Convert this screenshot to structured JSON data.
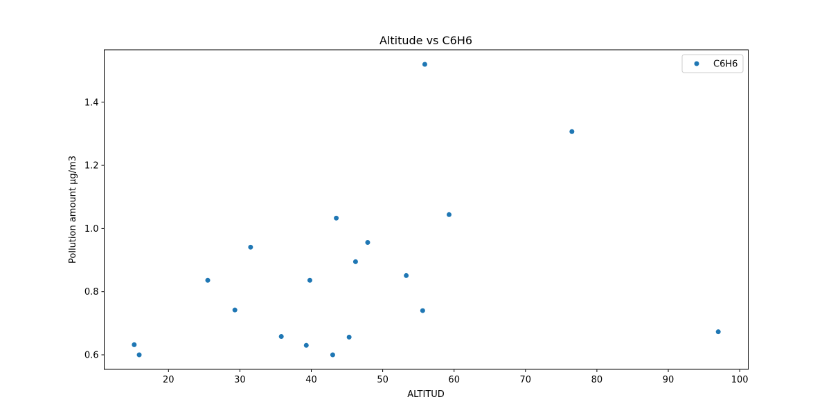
{
  "chart_data": {
    "type": "scatter",
    "title": "Altitude vs C6H6",
    "xlabel": "ALTITUD",
    "ylabel": "Pollution amount µg/m3",
    "xlim": [
      11.0,
      101.2
    ],
    "ylim": [
      0.554,
      1.566
    ],
    "xticks": [
      20,
      30,
      40,
      50,
      60,
      70,
      80,
      90,
      100
    ],
    "yticks": [
      0.6,
      0.8,
      1.0,
      1.2,
      1.4
    ],
    "grid": false,
    "legend_position": "top-right",
    "color": "#1f77b4",
    "series": [
      {
        "name": "C6H6",
        "points": [
          {
            "x": 15.2,
            "y": 0.632
          },
          {
            "x": 15.9,
            "y": 0.6
          },
          {
            "x": 25.5,
            "y": 0.836
          },
          {
            "x": 29.3,
            "y": 0.742
          },
          {
            "x": 31.5,
            "y": 0.941
          },
          {
            "x": 35.8,
            "y": 0.658
          },
          {
            "x": 39.3,
            "y": 0.63
          },
          {
            "x": 39.8,
            "y": 0.836
          },
          {
            "x": 43.0,
            "y": 0.6
          },
          {
            "x": 43.5,
            "y": 1.033
          },
          {
            "x": 45.3,
            "y": 0.656
          },
          {
            "x": 46.2,
            "y": 0.895
          },
          {
            "x": 47.9,
            "y": 0.956
          },
          {
            "x": 53.3,
            "y": 0.851
          },
          {
            "x": 55.6,
            "y": 0.74
          },
          {
            "x": 55.9,
            "y": 1.52
          },
          {
            "x": 59.3,
            "y": 1.044
          },
          {
            "x": 76.5,
            "y": 1.307
          },
          {
            "x": 97.0,
            "y": 0.673
          }
        ]
      }
    ]
  }
}
